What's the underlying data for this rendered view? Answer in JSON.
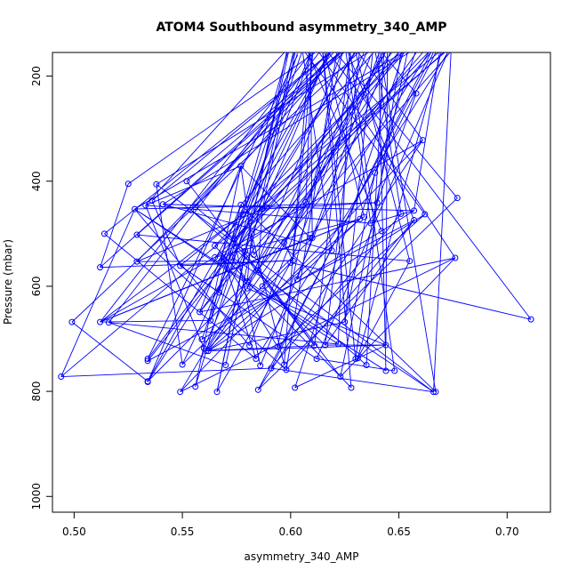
{
  "chart_data": {
    "type": "scatter",
    "title": "ATOM4 Southbound asymmetry_340_AMP",
    "xlabel": "asymmetry_340_AMP",
    "ylabel": "Pressure (mbar)",
    "xlim": [
      0.49,
      0.72
    ],
    "ylim": [
      1030,
      155
    ],
    "y_reversed": true,
    "x_ticks": [
      0.5,
      0.55,
      0.6,
      0.65,
      0.7
    ],
    "x_tick_labels": [
      "0.50",
      "0.55",
      "0.60",
      "0.65",
      "0.70"
    ],
    "y_ticks": [
      200,
      400,
      600,
      800,
      1000
    ],
    "y_tick_labels": [
      "200",
      "400",
      "600",
      "800",
      "1000"
    ],
    "series_color": "#0000ff",
    "points": [
      {
        "x": 0.494,
        "y": 772
      },
      {
        "x": 0.499,
        "y": 668
      },
      {
        "x": 0.512,
        "y": 564
      },
      {
        "x": 0.512,
        "y": 668
      },
      {
        "x": 0.514,
        "y": 500
      },
      {
        "x": 0.516,
        "y": 669
      },
      {
        "x": 0.525,
        "y": 405
      },
      {
        "x": 0.528,
        "y": 453
      },
      {
        "x": 0.529,
        "y": 553
      },
      {
        "x": 0.529,
        "y": 502
      },
      {
        "x": 0.533,
        "y": 446
      },
      {
        "x": 0.534,
        "y": 738
      },
      {
        "x": 0.534,
        "y": 742
      },
      {
        "x": 0.534,
        "y": 781
      },
      {
        "x": 0.534,
        "y": 782
      },
      {
        "x": 0.536,
        "y": 437
      },
      {
        "x": 0.538,
        "y": 406
      },
      {
        "x": 0.541,
        "y": 444
      },
      {
        "x": 0.549,
        "y": 561
      },
      {
        "x": 0.549,
        "y": 801
      },
      {
        "x": 0.55,
        "y": 749
      },
      {
        "x": 0.552,
        "y": 400
      },
      {
        "x": 0.554,
        "y": 455
      },
      {
        "x": 0.556,
        "y": 449
      },
      {
        "x": 0.556,
        "y": 791
      },
      {
        "x": 0.558,
        "y": 649
      },
      {
        "x": 0.559,
        "y": 701
      },
      {
        "x": 0.56,
        "y": 718
      },
      {
        "x": 0.561,
        "y": 723
      },
      {
        "x": 0.562,
        "y": 723
      },
      {
        "x": 0.563,
        "y": 665
      },
      {
        "x": 0.565,
        "y": 545
      },
      {
        "x": 0.565,
        "y": 523
      },
      {
        "x": 0.566,
        "y": 801
      },
      {
        "x": 0.567,
        "y": 612
      },
      {
        "x": 0.568,
        "y": 552
      },
      {
        "x": 0.569,
        "y": 548
      },
      {
        "x": 0.57,
        "y": 750
      },
      {
        "x": 0.573,
        "y": 545
      },
      {
        "x": 0.574,
        "y": 510
      },
      {
        "x": 0.577,
        "y": 371
      },
      {
        "x": 0.577,
        "y": 445
      },
      {
        "x": 0.578,
        "y": 463
      },
      {
        "x": 0.579,
        "y": 533
      },
      {
        "x": 0.58,
        "y": 591
      },
      {
        "x": 0.58,
        "y": 604
      },
      {
        "x": 0.581,
        "y": 713
      },
      {
        "x": 0.582,
        "y": 500
      },
      {
        "x": 0.583,
        "y": 540
      },
      {
        "x": 0.584,
        "y": 738
      },
      {
        "x": 0.585,
        "y": 569
      },
      {
        "x": 0.585,
        "y": 797
      },
      {
        "x": 0.586,
        "y": 751
      },
      {
        "x": 0.587,
        "y": 453
      },
      {
        "x": 0.587,
        "y": 600
      },
      {
        "x": 0.589,
        "y": 450
      },
      {
        "x": 0.591,
        "y": 756
      },
      {
        "x": 0.594,
        "y": 715
      },
      {
        "x": 0.597,
        "y": 517
      },
      {
        "x": 0.597,
        "y": 749
      },
      {
        "x": 0.598,
        "y": 759
      },
      {
        "x": 0.6,
        "y": 555
      },
      {
        "x": 0.601,
        "y": 551
      },
      {
        "x": 0.602,
        "y": 793
      },
      {
        "x": 0.603,
        "y": 587
      },
      {
        "x": 0.607,
        "y": 440
      },
      {
        "x": 0.609,
        "y": 508
      },
      {
        "x": 0.61,
        "y": 508
      },
      {
        "x": 0.611,
        "y": 713
      },
      {
        "x": 0.612,
        "y": 738
      },
      {
        "x": 0.616,
        "y": 712
      },
      {
        "x": 0.619,
        "y": 532
      },
      {
        "x": 0.622,
        "y": 710
      },
      {
        "x": 0.623,
        "y": 772
      },
      {
        "x": 0.625,
        "y": 668
      },
      {
        "x": 0.628,
        "y": 793
      },
      {
        "x": 0.63,
        "y": 738
      },
      {
        "x": 0.631,
        "y": 737
      },
      {
        "x": 0.632,
        "y": 472
      },
      {
        "x": 0.634,
        "y": 468
      },
      {
        "x": 0.635,
        "y": 750
      },
      {
        "x": 0.637,
        "y": 480
      },
      {
        "x": 0.639,
        "y": 384
      },
      {
        "x": 0.64,
        "y": 441
      },
      {
        "x": 0.642,
        "y": 495
      },
      {
        "x": 0.644,
        "y": 712
      },
      {
        "x": 0.644,
        "y": 761
      },
      {
        "x": 0.648,
        "y": 761
      },
      {
        "x": 0.651,
        "y": 462
      },
      {
        "x": 0.655,
        "y": 552
      },
      {
        "x": 0.657,
        "y": 474
      },
      {
        "x": 0.657,
        "y": 456
      },
      {
        "x": 0.658,
        "y": 233
      },
      {
        "x": 0.661,
        "y": 322
      },
      {
        "x": 0.662,
        "y": 463
      },
      {
        "x": 0.666,
        "y": 801
      },
      {
        "x": 0.667,
        "y": 801
      },
      {
        "x": 0.676,
        "y": 546
      },
      {
        "x": 0.677,
        "y": 432
      },
      {
        "x": 0.711,
        "y": 663
      }
    ]
  }
}
